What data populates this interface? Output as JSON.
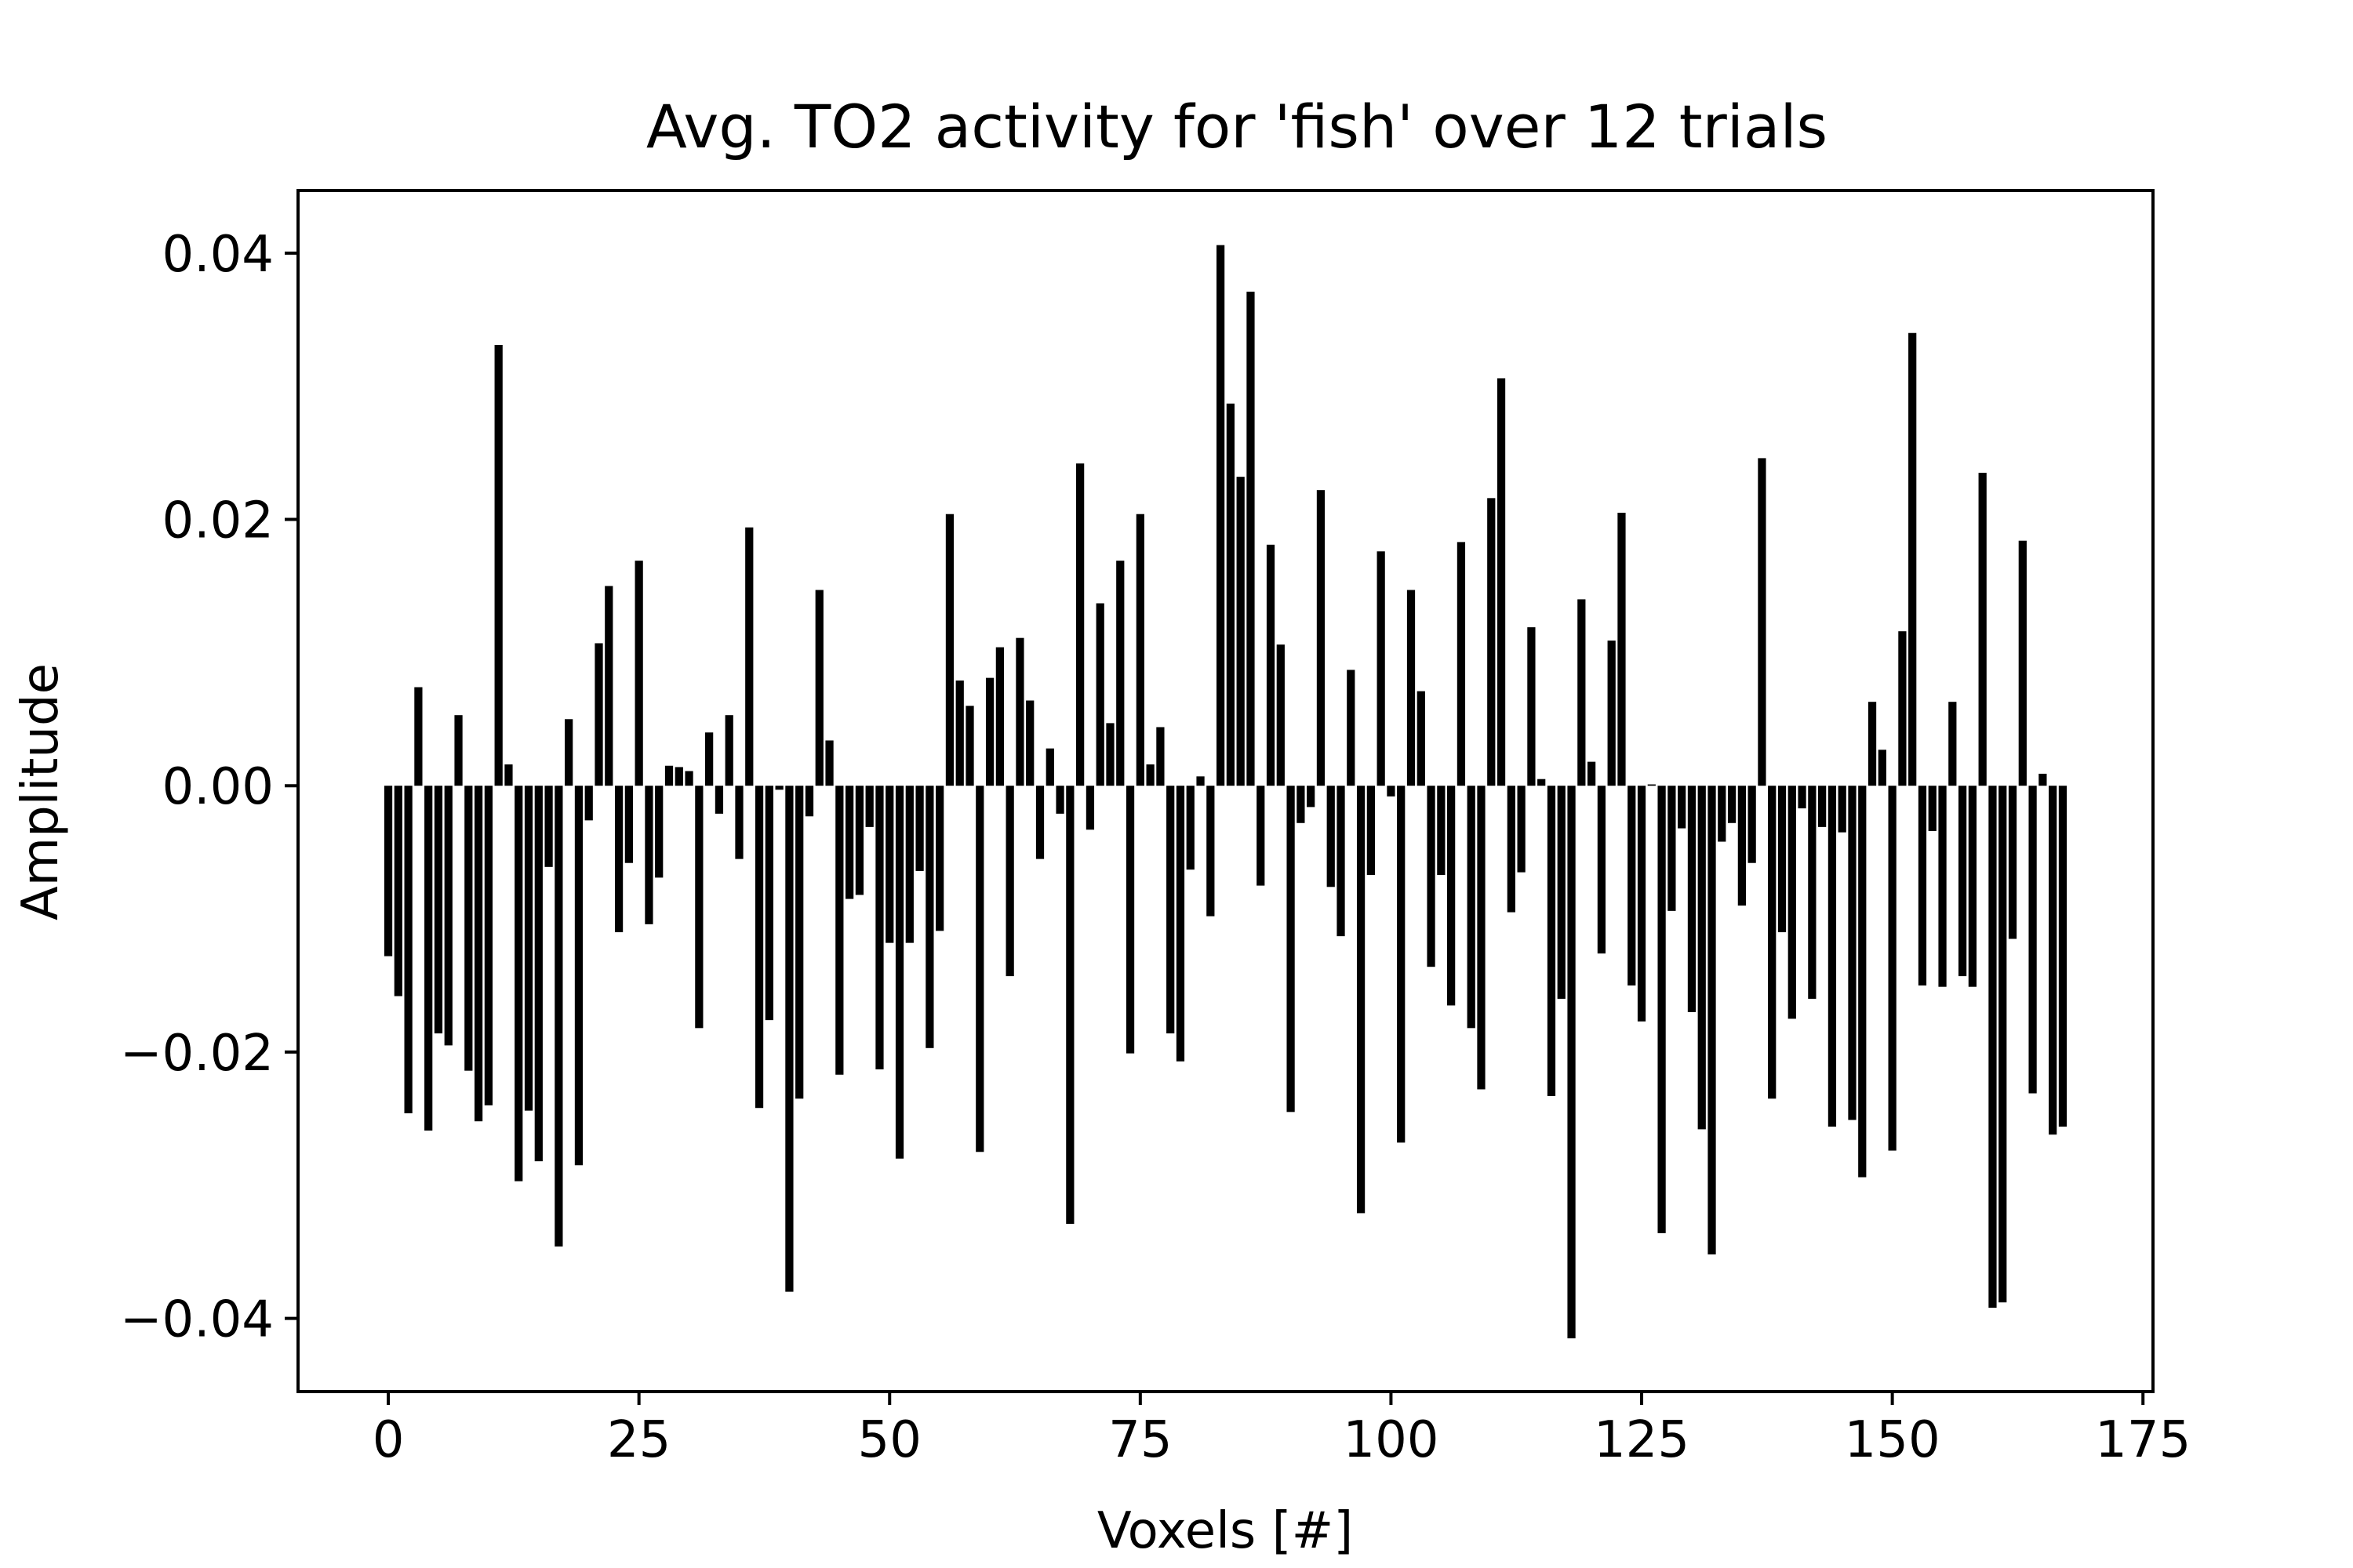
{
  "chart_data": {
    "type": "bar",
    "title": "Avg. TO2 activity for 'fish' over 12 trials",
    "xlabel": "Voxels [#]",
    "ylabel": "Amplitude",
    "xlim": [
      -9,
      176
    ],
    "ylim": [
      -0.0455,
      0.0447
    ],
    "xticks": [
      0,
      25,
      50,
      75,
      100,
      125,
      150,
      175
    ],
    "xtick_labels": [
      "0",
      "25",
      "50",
      "75",
      "100",
      "125",
      "150",
      "175"
    ],
    "yticks": [
      -0.04,
      -0.02,
      0.0,
      0.02,
      0.04
    ],
    "ytick_labels": [
      "−0.04",
      "−0.02",
      "0.00",
      "0.02",
      "0.04"
    ],
    "grid": false,
    "bar_color": "#000000",
    "x": [
      0,
      1,
      2,
      3,
      4,
      5,
      6,
      7,
      8,
      9,
      10,
      11,
      12,
      13,
      14,
      15,
      16,
      17,
      18,
      19,
      20,
      21,
      22,
      23,
      24,
      25,
      26,
      27,
      28,
      29,
      30,
      31,
      32,
      33,
      34,
      35,
      36,
      37,
      38,
      39,
      40,
      41,
      42,
      43,
      44,
      45,
      46,
      47,
      48,
      49,
      50,
      51,
      52,
      53,
      54,
      55,
      56,
      57,
      58,
      59,
      60,
      61,
      62,
      63,
      64,
      65,
      66,
      67,
      68,
      69,
      70,
      71,
      72,
      73,
      74,
      75,
      76,
      77,
      78,
      79,
      80,
      81,
      82,
      83,
      84,
      85,
      86,
      87,
      88,
      89,
      90,
      91,
      92,
      93,
      94,
      95,
      96,
      97,
      98,
      99,
      100,
      101,
      102,
      103,
      104,
      105,
      106,
      107,
      108,
      109,
      110,
      111,
      112,
      113,
      114,
      115,
      116,
      117,
      118,
      119,
      120,
      121,
      122,
      123,
      124,
      125,
      126,
      127,
      128,
      129,
      130,
      131,
      132,
      133,
      134,
      135,
      136,
      137,
      138,
      139,
      140,
      141,
      142,
      143,
      144,
      145,
      146,
      147,
      148,
      149,
      150,
      151,
      152,
      153,
      154,
      155,
      156,
      157,
      158,
      159,
      160,
      161,
      162,
      163,
      164,
      165,
      166,
      167
    ],
    "values": [
      -0.0128,
      -0.0158,
      -0.0246,
      0.0074,
      -0.0259,
      -0.0186,
      -0.0195,
      0.0053,
      -0.0214,
      -0.0252,
      -0.024,
      0.0331,
      0.0016,
      -0.0297,
      -0.0244,
      -0.0282,
      -0.0061,
      -0.0346,
      0.005,
      -0.0285,
      -0.0026,
      0.0107,
      0.015,
      -0.011,
      -0.0058,
      0.0169,
      -0.0104,
      -0.0069,
      0.0015,
      0.0014,
      0.0011,
      -0.0182,
      0.004,
      -0.0021,
      0.0053,
      -0.0055,
      0.0194,
      -0.0242,
      -0.0176,
      -0.0003,
      -0.038,
      -0.0235,
      -0.0023,
      0.0147,
      0.0034,
      -0.0217,
      -0.0085,
      -0.0082,
      -0.0031,
      -0.0213,
      -0.0118,
      -0.028,
      -0.0118,
      -0.0064,
      -0.0197,
      -0.0109,
      0.0204,
      0.0079,
      0.006,
      -0.0275,
      0.0081,
      0.0104,
      -0.0143,
      0.0111,
      0.0064,
      -0.0055,
      0.0028,
      -0.0021,
      -0.0329,
      0.0242,
      -0.0033,
      0.0137,
      0.0047,
      0.0169,
      -0.0201,
      0.0204,
      0.0016,
      0.0044,
      -0.0186,
      -0.0207,
      -0.0063,
      0.0007,
      -0.0098,
      0.0406,
      0.0287,
      0.0232,
      0.0371,
      -0.0075,
      0.0181,
      0.0106,
      -0.0245,
      -0.0028,
      -0.0016,
      0.0222,
      -0.0076,
      -0.0113,
      0.0087,
      -0.0321,
      -0.0067,
      0.0176,
      -0.0008,
      -0.0268,
      0.0147,
      0.0071,
      -0.0136,
      -0.0067,
      -0.0165,
      0.0183,
      -0.0182,
      -0.0228,
      0.0216,
      0.0306,
      -0.0095,
      -0.0065,
      0.0119,
      0.0005,
      -0.0233,
      -0.016,
      -0.0415,
      0.014,
      0.0018,
      -0.0126,
      0.0109,
      0.0205,
      -0.015,
      -0.0177,
      0.0001,
      -0.0336,
      -0.0094,
      -0.0032,
      -0.017,
      -0.0258,
      -0.0352,
      -0.0042,
      -0.0028,
      -0.009,
      -0.0058,
      0.0246,
      -0.0235,
      -0.011,
      -0.0175,
      -0.0017,
      -0.016,
      -0.0031,
      -0.0256,
      -0.0035,
      -0.0251,
      -0.0294,
      0.0063,
      0.0027,
      -0.0274,
      0.0116,
      0.034,
      -0.015,
      -0.0034,
      -0.0151,
      0.0063,
      -0.0143,
      -0.0151,
      0.0235,
      -0.0392,
      -0.0388,
      -0.0115,
      0.0184,
      -0.0231,
      0.0009,
      -0.0262,
      -0.0256
    ]
  }
}
